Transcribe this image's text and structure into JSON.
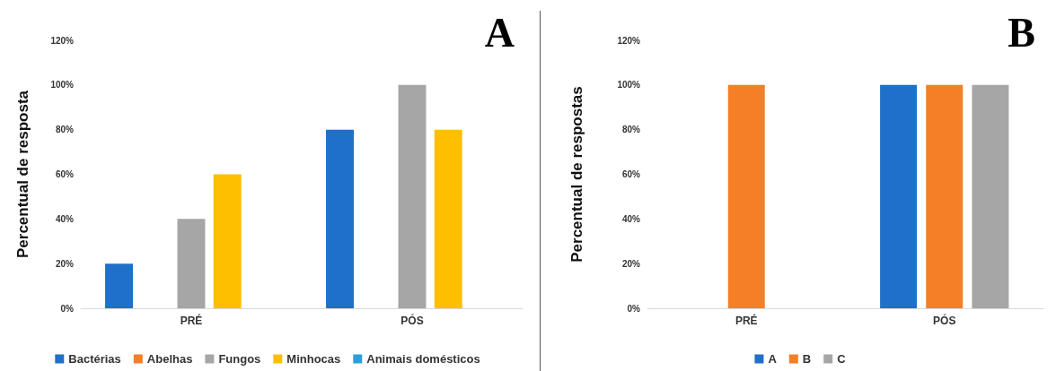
{
  "chart_data": [
    {
      "type": "bar",
      "title": "A",
      "ylabel": "Percentual de resposta",
      "categories": [
        "PRÉ",
        "PÓS"
      ],
      "series": [
        {
          "name": "Bactérias",
          "color": "#1f70c8",
          "values": [
            20,
            80
          ]
        },
        {
          "name": "Abelhas",
          "color": "#f47f26",
          "values": [
            0,
            0
          ]
        },
        {
          "name": "Fungos",
          "color": "#a6a6a6",
          "values": [
            40,
            100
          ]
        },
        {
          "name": "Minhocas",
          "color": "#fdbf00",
          "values": [
            60,
            80
          ]
        },
        {
          "name": "Animais domésticos",
          "color": "#2c9fd9",
          "values": [
            0,
            0
          ]
        }
      ],
      "ylim": [
        0,
        120
      ],
      "yticks": [
        {
          "value": 0,
          "label": "0%"
        },
        {
          "value": 20,
          "label": "20%"
        },
        {
          "value": 40,
          "label": "40%"
        },
        {
          "value": 60,
          "label": "60%"
        },
        {
          "value": 80,
          "label": "80%"
        },
        {
          "value": 100,
          "label": "100%"
        },
        {
          "value": 120,
          "label": "120%"
        }
      ],
      "grid": false,
      "legend": "bottom"
    },
    {
      "type": "bar",
      "title": "B",
      "ylabel": "Percentual de respostas",
      "categories": [
        "PRÉ",
        "PÓS"
      ],
      "series": [
        {
          "name": "A",
          "color": "#1f70c8",
          "values": [
            0,
            100
          ]
        },
        {
          "name": "B",
          "color": "#f47f26",
          "values": [
            100,
            100
          ]
        },
        {
          "name": "C",
          "color": "#a6a6a6",
          "values": [
            0,
            100
          ]
        }
      ],
      "ylim": [
        0,
        120
      ],
      "yticks": [
        {
          "value": 0,
          "label": "0%"
        },
        {
          "value": 20,
          "label": "20%"
        },
        {
          "value": 40,
          "label": "40%"
        },
        {
          "value": 60,
          "label": "60%"
        },
        {
          "value": 80,
          "label": "80%"
        },
        {
          "value": 100,
          "label": "100%"
        },
        {
          "value": 120,
          "label": "120%"
        }
      ],
      "grid": false,
      "legend": "bottom"
    }
  ]
}
